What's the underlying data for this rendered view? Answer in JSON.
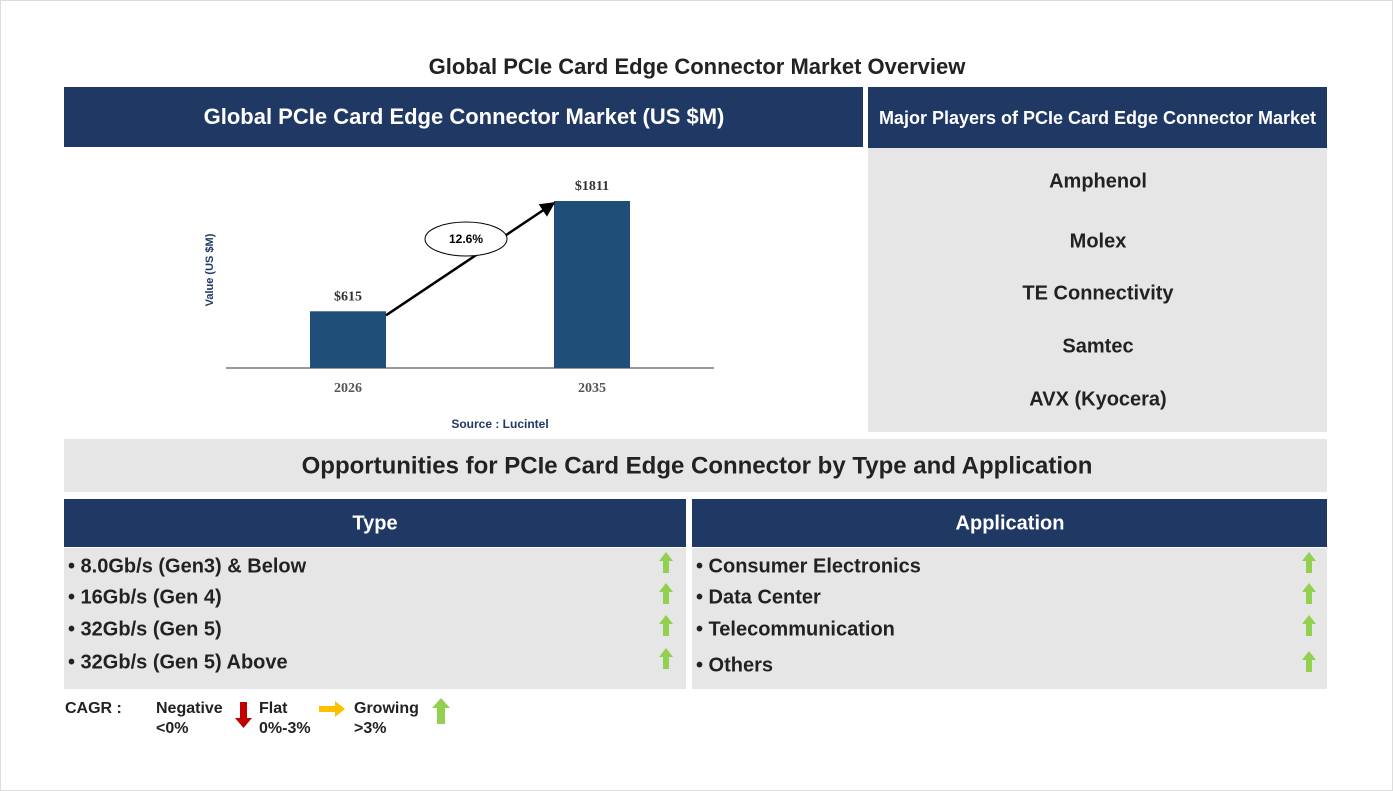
{
  "title": "Global PCIe Card Edge Connector Market Overview",
  "chart_data": {
    "type": "bar",
    "title": "Global PCIe Card Edge Connector Market (US $M)",
    "y_label": "Value (US $M)",
    "categories": [
      "2026",
      "2035"
    ],
    "values": [
      615,
      1811
    ],
    "value_labels": [
      "$615",
      "$1811"
    ],
    "color": "#1f4e79",
    "annotation": "12.6%",
    "source": "Source : Lucintel"
  },
  "players": {
    "title": "Major Players of PCIe Card Edge Connector Market",
    "items": [
      "Amphenol",
      "Molex",
      "TE Connectivity",
      "Samtec",
      "AVX (Kyocera)"
    ]
  },
  "opportunities": {
    "title": "Opportunities for PCIe Card Edge Connector by Type and Application",
    "type": {
      "header": "Type",
      "items": [
        "• 8.0Gb/s (Gen3) & Below",
        "• 16Gb/s (Gen 4)",
        "• 32Gb/s (Gen 5)",
        "• 32Gb/s (Gen 5) Above"
      ]
    },
    "application": {
      "header": "Application",
      "items": [
        "• Consumer Electronics",
        "• Data Center",
        "• Telecommunication",
        "• Others"
      ]
    }
  },
  "legend": {
    "label": "CAGR :",
    "items": [
      {
        "name": "Negative",
        "range": "<0%"
      },
      {
        "name": "Flat",
        "range": "0%-3%"
      },
      {
        "name": "Growing",
        "range": ">3%"
      }
    ]
  }
}
